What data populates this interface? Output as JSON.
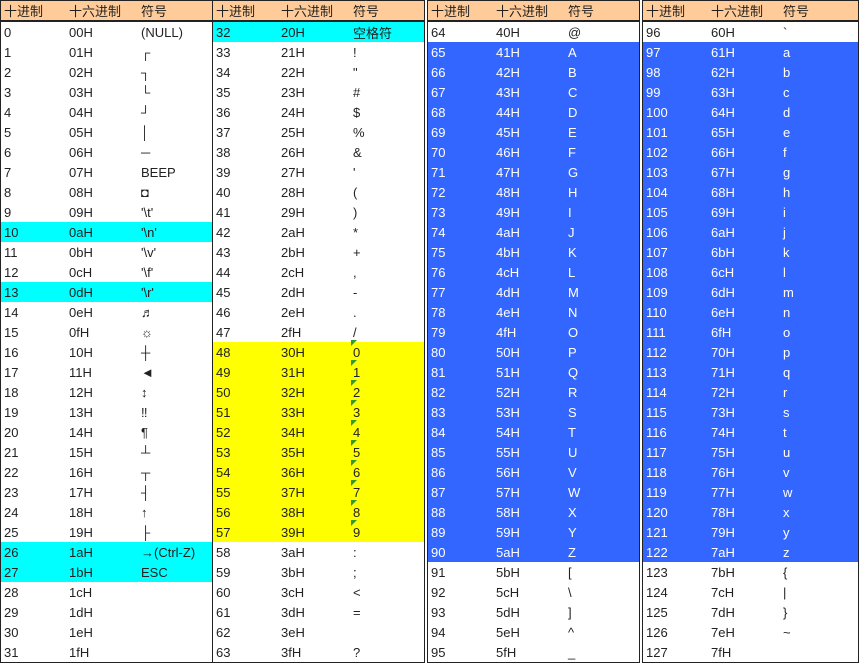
{
  "headers": [
    "十进制",
    "十六进制",
    "符号"
  ],
  "colors": {
    "header_bg": "#ffcc99",
    "cyan": "#00ffff",
    "yellow": "#ffff00",
    "blue": "#3366ff"
  },
  "columns": [
    [
      [
        "0",
        "00H",
        "(NULL)",
        ""
      ],
      [
        "1",
        "01H",
        "┌",
        ""
      ],
      [
        "2",
        "02H",
        "┐",
        ""
      ],
      [
        "3",
        "03H",
        "└",
        ""
      ],
      [
        "4",
        "04H",
        "┘",
        ""
      ],
      [
        "5",
        "05H",
        "│",
        ""
      ],
      [
        "6",
        "06H",
        "─",
        ""
      ],
      [
        "7",
        "07H",
        "BEEP",
        ""
      ],
      [
        "8",
        "08H",
        "◘",
        ""
      ],
      [
        "9",
        "09H",
        "'\\t'",
        ""
      ],
      [
        "10",
        "0aH",
        "'\\n'",
        "cyan"
      ],
      [
        "11",
        "0bH",
        "'\\v'",
        ""
      ],
      [
        "12",
        "0cH",
        "'\\f'",
        ""
      ],
      [
        "13",
        "0dH",
        "'\\r'",
        "cyan"
      ],
      [
        "14",
        "0eH",
        "♬",
        ""
      ],
      [
        "15",
        "0fH",
        "☼",
        ""
      ],
      [
        "16",
        "10H",
        "┼",
        ""
      ],
      [
        "17",
        "11H",
        "◄",
        ""
      ],
      [
        "18",
        "12H",
        "↕",
        ""
      ],
      [
        "19",
        "13H",
        "‼",
        ""
      ],
      [
        "20",
        "14H",
        "¶",
        ""
      ],
      [
        "21",
        "15H",
        "┴",
        ""
      ],
      [
        "22",
        "16H",
        "┬",
        ""
      ],
      [
        "23",
        "17H",
        "┤",
        ""
      ],
      [
        "24",
        "18H",
        "↑",
        ""
      ],
      [
        "25",
        "19H",
        "├",
        ""
      ],
      [
        "26",
        "1aH",
        "→(Ctrl-Z)",
        "cyan"
      ],
      [
        "27",
        "1bH",
        "ESC",
        "cyan"
      ],
      [
        "28",
        "1cH",
        "",
        ""
      ],
      [
        "29",
        "1dH",
        "",
        ""
      ],
      [
        "30",
        "1eH",
        "",
        ""
      ],
      [
        "31",
        "1fH",
        "",
        ""
      ]
    ],
    [
      [
        "32",
        "20H",
        "空格符",
        "cyan"
      ],
      [
        "33",
        "21H",
        "!",
        ""
      ],
      [
        "34",
        "22H",
        "\"",
        ""
      ],
      [
        "35",
        "23H",
        "#",
        ""
      ],
      [
        "36",
        "24H",
        "$",
        ""
      ],
      [
        "37",
        "25H",
        "%",
        ""
      ],
      [
        "38",
        "26H",
        "&",
        ""
      ],
      [
        "39",
        "27H",
        "'",
        ""
      ],
      [
        "40",
        "28H",
        "(",
        ""
      ],
      [
        "41",
        "29H",
        ")",
        ""
      ],
      [
        "42",
        "2aH",
        "*",
        ""
      ],
      [
        "43",
        "2bH",
        "+",
        ""
      ],
      [
        "44",
        "2cH",
        ",",
        ""
      ],
      [
        "45",
        "2dH",
        "-",
        ""
      ],
      [
        "46",
        "2eH",
        ".",
        ""
      ],
      [
        "47",
        "2fH",
        "/",
        ""
      ],
      [
        "48",
        "30H",
        "0",
        "yellow"
      ],
      [
        "49",
        "31H",
        "1",
        "yellow"
      ],
      [
        "50",
        "32H",
        "2",
        "yellow"
      ],
      [
        "51",
        "33H",
        "3",
        "yellow"
      ],
      [
        "52",
        "34H",
        "4",
        "yellow"
      ],
      [
        "53",
        "35H",
        "5",
        "yellow"
      ],
      [
        "54",
        "36H",
        "6",
        "yellow"
      ],
      [
        "55",
        "37H",
        "7",
        "yellow"
      ],
      [
        "56",
        "38H",
        "8",
        "yellow"
      ],
      [
        "57",
        "39H",
        "9",
        "yellow"
      ],
      [
        "58",
        "3aH",
        ":",
        ""
      ],
      [
        "59",
        "3bH",
        ";",
        ""
      ],
      [
        "60",
        "3cH",
        "<",
        ""
      ],
      [
        "61",
        "3dH",
        "=",
        ""
      ],
      [
        "62",
        "3eH",
        "",
        ""
      ],
      [
        "63",
        "3fH",
        "?",
        ""
      ]
    ],
    [
      [
        "64",
        "40H",
        "@",
        ""
      ],
      [
        "65",
        "41H",
        "A",
        "blue"
      ],
      [
        "66",
        "42H",
        "B",
        "blue"
      ],
      [
        "67",
        "43H",
        "C",
        "blue"
      ],
      [
        "68",
        "44H",
        "D",
        "blue"
      ],
      [
        "69",
        "45H",
        "E",
        "blue"
      ],
      [
        "70",
        "46H",
        "F",
        "blue"
      ],
      [
        "71",
        "47H",
        "G",
        "blue"
      ],
      [
        "72",
        "48H",
        "H",
        "blue"
      ],
      [
        "73",
        "49H",
        "I",
        "blue"
      ],
      [
        "74",
        "4aH",
        "J",
        "blue"
      ],
      [
        "75",
        "4bH",
        "K",
        "blue"
      ],
      [
        "76",
        "4cH",
        "L",
        "blue"
      ],
      [
        "77",
        "4dH",
        "M",
        "blue"
      ],
      [
        "78",
        "4eH",
        "N",
        "blue"
      ],
      [
        "79",
        "4fH",
        "O",
        "blue"
      ],
      [
        "80",
        "50H",
        "P",
        "blue"
      ],
      [
        "81",
        "51H",
        "Q",
        "blue"
      ],
      [
        "82",
        "52H",
        "R",
        "blue"
      ],
      [
        "83",
        "53H",
        "S",
        "blue"
      ],
      [
        "84",
        "54H",
        "T",
        "blue"
      ],
      [
        "85",
        "55H",
        "U",
        "blue"
      ],
      [
        "86",
        "56H",
        "V",
        "blue"
      ],
      [
        "87",
        "57H",
        "W",
        "blue"
      ],
      [
        "88",
        "58H",
        "X",
        "blue"
      ],
      [
        "89",
        "59H",
        "Y",
        "blue"
      ],
      [
        "90",
        "5aH",
        "Z",
        "blue"
      ],
      [
        "91",
        "5bH",
        "[",
        ""
      ],
      [
        "92",
        "5cH",
        "\\",
        ""
      ],
      [
        "93",
        "5dH",
        "]",
        ""
      ],
      [
        "94",
        "5eH",
        "^",
        ""
      ],
      [
        "95",
        "5fH",
        "_",
        ""
      ]
    ],
    [
      [
        "96",
        "60H",
        "`",
        ""
      ],
      [
        "97",
        "61H",
        "a",
        "blue"
      ],
      [
        "98",
        "62H",
        "b",
        "blue"
      ],
      [
        "99",
        "63H",
        "c",
        "blue"
      ],
      [
        "100",
        "64H",
        "d",
        "blue"
      ],
      [
        "101",
        "65H",
        "e",
        "blue"
      ],
      [
        "102",
        "66H",
        "f",
        "blue"
      ],
      [
        "103",
        "67H",
        "g",
        "blue"
      ],
      [
        "104",
        "68H",
        "h",
        "blue"
      ],
      [
        "105",
        "69H",
        "i",
        "blue"
      ],
      [
        "106",
        "6aH",
        "j",
        "blue"
      ],
      [
        "107",
        "6bH",
        "k",
        "blue"
      ],
      [
        "108",
        "6cH",
        "l",
        "blue"
      ],
      [
        "109",
        "6dH",
        "m",
        "blue"
      ],
      [
        "110",
        "6eH",
        "n",
        "blue"
      ],
      [
        "111",
        "6fH",
        "o",
        "blue"
      ],
      [
        "112",
        "70H",
        "p",
        "blue"
      ],
      [
        "113",
        "71H",
        "q",
        "blue"
      ],
      [
        "114",
        "72H",
        "r",
        "blue"
      ],
      [
        "115",
        "73H",
        "s",
        "blue"
      ],
      [
        "116",
        "74H",
        "t",
        "blue"
      ],
      [
        "117",
        "75H",
        "u",
        "blue"
      ],
      [
        "118",
        "76H",
        "v",
        "blue"
      ],
      [
        "119",
        "77H",
        "w",
        "blue"
      ],
      [
        "120",
        "78H",
        "x",
        "blue"
      ],
      [
        "121",
        "79H",
        "y",
        "blue"
      ],
      [
        "122",
        "7aH",
        "z",
        "blue"
      ],
      [
        "123",
        "7bH",
        "{",
        ""
      ],
      [
        "124",
        "7cH",
        "|",
        ""
      ],
      [
        "125",
        "7dH",
        "}",
        ""
      ],
      [
        "126",
        "7eH",
        "~",
        ""
      ],
      [
        "127",
        "7fH",
        "",
        ""
      ]
    ]
  ]
}
